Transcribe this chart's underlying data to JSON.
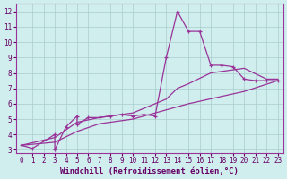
{
  "title": "",
  "xlabel": "Windchill (Refroidissement éolien,°C)",
  "ylabel": "",
  "background_color": "#d0eeed",
  "line_color": "#993399",
  "grid_color": "#aacccc",
  "xlim": [
    -0.5,
    23.5
  ],
  "ylim": [
    2.8,
    12.5
  ],
  "xticks": [
    0,
    1,
    2,
    3,
    4,
    5,
    6,
    7,
    8,
    9,
    10,
    11,
    12,
    13,
    14,
    15,
    16,
    17,
    18,
    19,
    20,
    21,
    22,
    23
  ],
  "yticks": [
    3,
    4,
    5,
    6,
    7,
    8,
    9,
    10,
    11,
    12
  ],
  "line1_x": [
    0,
    1,
    3,
    3,
    4,
    5,
    5,
    6,
    7,
    8,
    9,
    10,
    11,
    12,
    13,
    14,
    15,
    16,
    17,
    18,
    19,
    20,
    21,
    22,
    23
  ],
  "line1_y": [
    3.3,
    3.1,
    4.0,
    3.0,
    4.5,
    5.2,
    4.65,
    5.1,
    5.1,
    5.2,
    5.3,
    5.2,
    5.3,
    5.2,
    9.0,
    12.0,
    10.7,
    10.7,
    8.5,
    8.5,
    8.4,
    7.6,
    7.5,
    7.5,
    7.5
  ],
  "line2_x": [
    0,
    3,
    5,
    7,
    10,
    13,
    14,
    15,
    17,
    20,
    22,
    23
  ],
  "line2_y": [
    3.3,
    3.8,
    4.8,
    5.1,
    5.4,
    6.3,
    7.0,
    7.3,
    8.0,
    8.3,
    7.6,
    7.6
  ],
  "line3_x": [
    0,
    3,
    5,
    7,
    10,
    15,
    20,
    23
  ],
  "line3_y": [
    3.3,
    3.5,
    4.2,
    4.7,
    5.0,
    6.0,
    6.8,
    7.5
  ],
  "font_color": "#660066",
  "tick_fontsize": 5.5,
  "xlabel_fontsize": 6.5
}
